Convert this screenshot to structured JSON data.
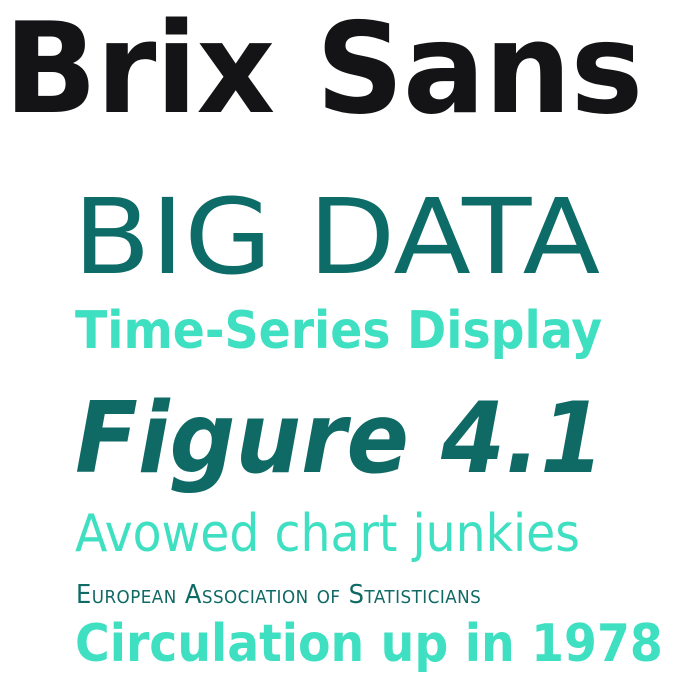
{
  "specimen": {
    "title": "Brix Sans",
    "lines": {
      "big_data": "BIG DATA",
      "time_series": "Time-Series Display",
      "figure": "Figure 4.1",
      "avowed": "Avowed chart junkies",
      "association": "European Association of Statisticians",
      "circulation": "Circulation up in 1978"
    },
    "colors": {
      "title": "#141416",
      "dark_teal": "#0f6a65",
      "mint": "#3fdfc1",
      "background": "#ffffff"
    }
  }
}
